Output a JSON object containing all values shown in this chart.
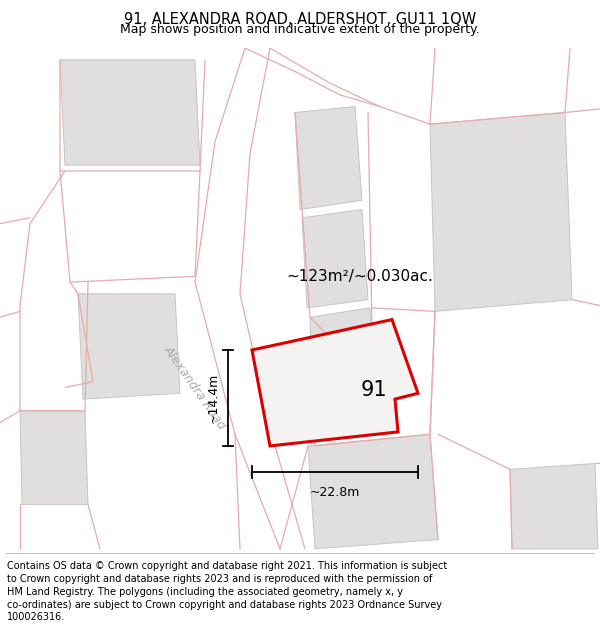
{
  "title": "91, ALEXANDRA ROAD, ALDERSHOT, GU11 1QW",
  "subtitle": "Map shows position and indicative extent of the property.",
  "footer_lines": [
    "Contains OS data © Crown copyright and database right 2021. This information is subject",
    "to Crown copyright and database rights 2023 and is reproduced with the permission of",
    "HM Land Registry. The polygons (including the associated geometry, namely x, y",
    "co-ordinates) are subject to Crown copyright and database rights 2023 Ordnance Survey",
    "100026316."
  ],
  "area_label": "~123m²/~0.030ac.",
  "property_number": "91",
  "dim_width": "~22.8m",
  "dim_height": "~14.4m",
  "road_label": "Alexandra Road",
  "map_bg": "#f7f4f4",
  "building_fill": "#e0dede",
  "building_edge": "#c8c4c4",
  "road_outline": "#e8aaaa",
  "property_edge": "#dd0000",
  "property_fill": "#f5f2f2",
  "title_fontsize": 10.5,
  "subtitle_fontsize": 9,
  "footer_fontsize": 7.0
}
